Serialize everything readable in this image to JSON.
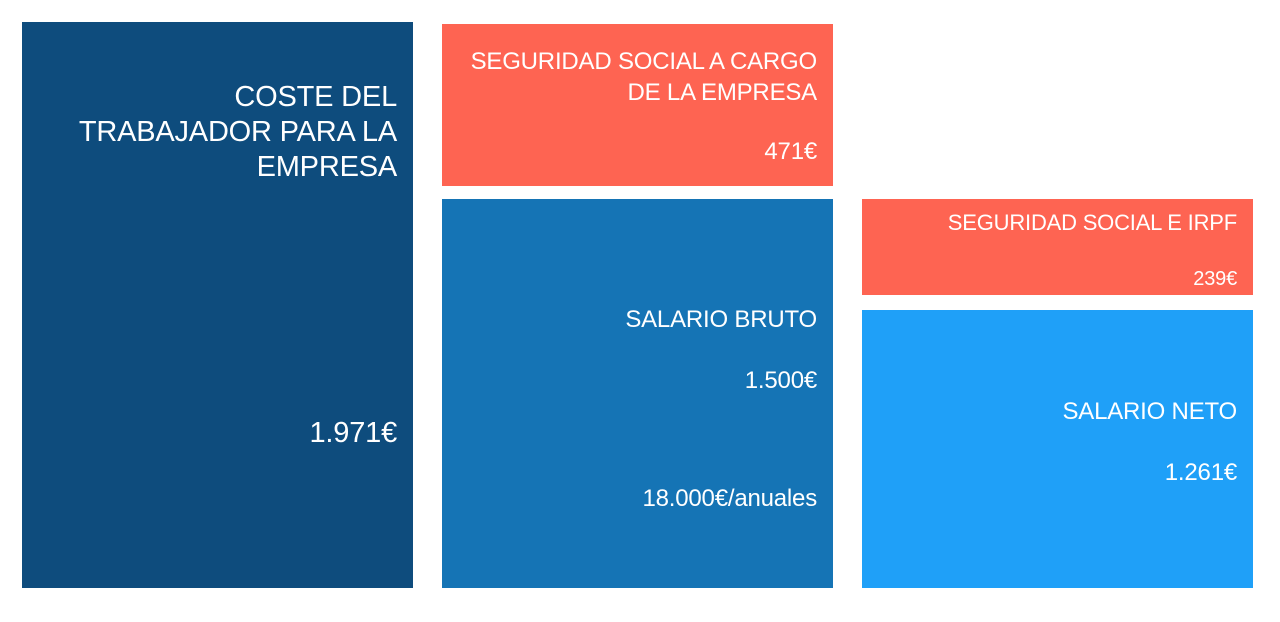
{
  "blocks": {
    "coste": {
      "title": "COSTE DEL TRABAJADOR PARA LA EMPRESA",
      "value": "1.971€",
      "color": "#0e4c7d"
    },
    "ss_empresa": {
      "title": "SEGURIDAD SOCIAL A CARGO DE LA EMPRESA",
      "value": "471€",
      "color": "#fe6452"
    },
    "bruto": {
      "title": "SALARIO BRUTO",
      "value": "1.500€",
      "annual": "18.000€/anuales",
      "color": "#1574b5"
    },
    "ss_irpf": {
      "title": "SEGURIDAD SOCIAL E IRPF",
      "value": "239€",
      "color": "#fe6452"
    },
    "neto": {
      "title": "SALARIO NETO",
      "value": "1.261€",
      "color": "#1fa0f8"
    }
  }
}
